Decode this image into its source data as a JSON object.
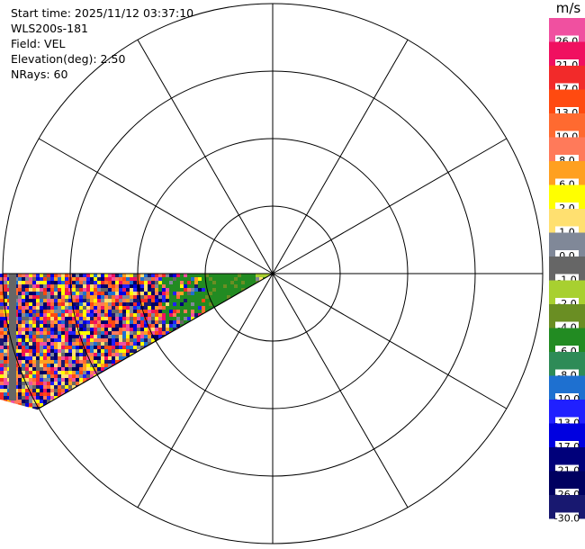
{
  "info": {
    "start_time": "Start time: 2025/11/12 03:37:10",
    "station": "WLS200s-181",
    "field": "Field: VEL",
    "elevation": "Elevation(deg): 2.50",
    "nrays": "NRays: 60"
  },
  "colorbar": {
    "units": "m/s",
    "bands": [
      {
        "label": "26.0",
        "color": "#f050a0"
      },
      {
        "label": "21.0",
        "color": "#f01060"
      },
      {
        "label": "17.0",
        "color": "#f22a2a"
      },
      {
        "label": "13.0",
        "color": "#ff4a10"
      },
      {
        "label": "10.0",
        "color": "#ff6a30"
      },
      {
        "label": "8.0",
        "color": "#ff7a5a"
      },
      {
        "label": "6.0",
        "color": "#ffa020"
      },
      {
        "label": "2.0",
        "color": "#ffff00"
      },
      {
        "label": "1.0",
        "color": "#ffe070"
      },
      {
        "label": "0.0",
        "color": "#808898"
      },
      {
        "label": "-1.0",
        "color": "#666666"
      },
      {
        "label": "-2.0",
        "color": "#a8d030"
      },
      {
        "label": "-4.0",
        "color": "#6a8e23"
      },
      {
        "label": "-6.0",
        "color": "#228b22"
      },
      {
        "label": "-8.0",
        "color": "#2e8b57"
      },
      {
        "label": "-10.0",
        "color": "#1e70d0"
      },
      {
        "label": "-13.0",
        "color": "#2020ff"
      },
      {
        "label": "-17.0",
        "color": "#0000e0"
      },
      {
        "label": "-21.0",
        "color": "#00007a"
      },
      {
        "label": "-26.0",
        "color": "#000060"
      },
      {
        "label": "-30.0",
        "color": "#181870"
      }
    ]
  },
  "chart_data": {
    "type": "heatmap",
    "projection": "polar PPI",
    "field": "VEL",
    "units": "m/s",
    "elevation_deg": 2.5,
    "nrays": 60,
    "range_rings": 4,
    "azimuth_spokes_deg": [
      0,
      30,
      60,
      90,
      120,
      150,
      180,
      210,
      240,
      270,
      300,
      330
    ],
    "sector": {
      "azimuth_start_deg": 240,
      "azimuth_end_deg": 270
    },
    "near_range_values_ms": [
      -2.0,
      -4.0,
      -6.0,
      0.0,
      1.0
    ],
    "far_range_values_ms": [
      -30.0,
      -26.0,
      -21.0,
      -17.0,
      -13.0,
      -10.0,
      26.0,
      21.0,
      17.0,
      13.0,
      10.0,
      8.0,
      6.0,
      2.0,
      1.0,
      0.0,
      -1.0
    ],
    "colorbar_range_ms": [
      -30.0,
      26.0
    ]
  }
}
